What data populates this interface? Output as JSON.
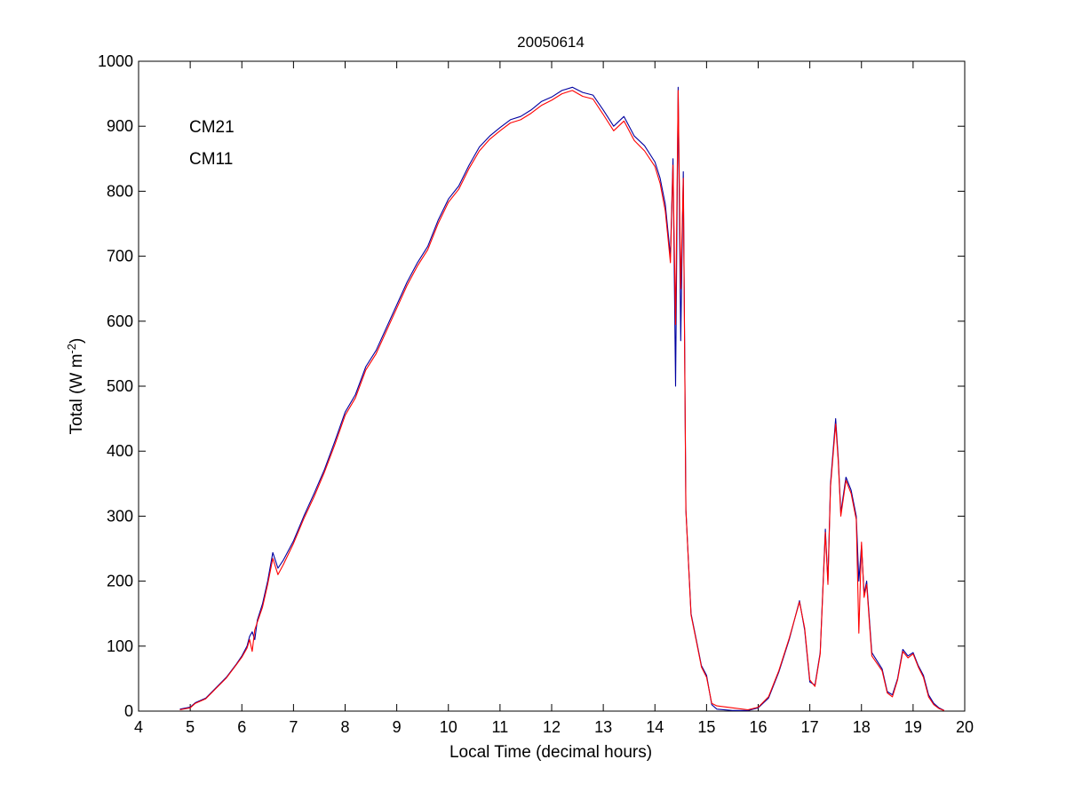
{
  "chart_data": {
    "type": "line",
    "title": "20050614",
    "xlabel": "Local Time (decimal hours)",
    "ylabel_main": "Total (W m",
    "ylabel_sup": "-2",
    "ylabel_close": ")",
    "xlim": [
      4,
      20
    ],
    "ylim": [
      0,
      1000
    ],
    "xticks": [
      4,
      5,
      6,
      7,
      8,
      9,
      10,
      11,
      12,
      13,
      14,
      15,
      16,
      17,
      18,
      19,
      20
    ],
    "yticks": [
      0,
      100,
      200,
      300,
      400,
      500,
      600,
      700,
      800,
      900,
      1000
    ],
    "grid": false,
    "legend_position": "top-left",
    "series": [
      {
        "name": "CM21",
        "color": "#0000a0",
        "points": [
          [
            4.8,
            3
          ],
          [
            5.0,
            6
          ],
          [
            5.1,
            13
          ],
          [
            5.3,
            20
          ],
          [
            5.5,
            36
          ],
          [
            5.7,
            52
          ],
          [
            5.9,
            73
          ],
          [
            6.0,
            85
          ],
          [
            6.1,
            100
          ],
          [
            6.15,
            115
          ],
          [
            6.2,
            122
          ],
          [
            6.25,
            110
          ],
          [
            6.3,
            140
          ],
          [
            6.4,
            165
          ],
          [
            6.5,
            200
          ],
          [
            6.6,
            244
          ],
          [
            6.7,
            220
          ],
          [
            6.8,
            232
          ],
          [
            7.0,
            262
          ],
          [
            7.2,
            300
          ],
          [
            7.4,
            335
          ],
          [
            7.6,
            372
          ],
          [
            7.8,
            415
          ],
          [
            8.0,
            460
          ],
          [
            8.2,
            487
          ],
          [
            8.4,
            530
          ],
          [
            8.6,
            555
          ],
          [
            8.8,
            590
          ],
          [
            9.0,
            625
          ],
          [
            9.2,
            660
          ],
          [
            9.4,
            690
          ],
          [
            9.6,
            715
          ],
          [
            9.8,
            755
          ],
          [
            10.0,
            788
          ],
          [
            10.2,
            808
          ],
          [
            10.4,
            840
          ],
          [
            10.6,
            868
          ],
          [
            10.8,
            885
          ],
          [
            11.0,
            898
          ],
          [
            11.2,
            910
          ],
          [
            11.4,
            915
          ],
          [
            11.6,
            925
          ],
          [
            11.8,
            938
          ],
          [
            12.0,
            945
          ],
          [
            12.2,
            955
          ],
          [
            12.4,
            960
          ],
          [
            12.6,
            952
          ],
          [
            12.8,
            948
          ],
          [
            13.0,
            925
          ],
          [
            13.2,
            900
          ],
          [
            13.4,
            915
          ],
          [
            13.6,
            885
          ],
          [
            13.8,
            870
          ],
          [
            14.0,
            845
          ],
          [
            14.1,
            820
          ],
          [
            14.2,
            780
          ],
          [
            14.25,
            740
          ],
          [
            14.3,
            700
          ],
          [
            14.35,
            850
          ],
          [
            14.4,
            500
          ],
          [
            14.45,
            960
          ],
          [
            14.5,
            570
          ],
          [
            14.55,
            830
          ],
          [
            14.6,
            310
          ],
          [
            14.7,
            150
          ],
          [
            14.8,
            110
          ],
          [
            14.9,
            70
          ],
          [
            15.0,
            55
          ],
          [
            15.1,
            10
          ],
          [
            15.2,
            3
          ],
          [
            15.5,
            1
          ],
          [
            15.8,
            1
          ],
          [
            16.0,
            5
          ],
          [
            16.2,
            20
          ],
          [
            16.4,
            60
          ],
          [
            16.6,
            110
          ],
          [
            16.8,
            170
          ],
          [
            16.9,
            125
          ],
          [
            17.0,
            45
          ],
          [
            17.1,
            40
          ],
          [
            17.2,
            90
          ],
          [
            17.3,
            280
          ],
          [
            17.35,
            200
          ],
          [
            17.4,
            350
          ],
          [
            17.5,
            450
          ],
          [
            17.55,
            390
          ],
          [
            17.6,
            305
          ],
          [
            17.7,
            360
          ],
          [
            17.8,
            340
          ],
          [
            17.9,
            300
          ],
          [
            17.95,
            200
          ],
          [
            18.0,
            255
          ],
          [
            18.05,
            180
          ],
          [
            18.1,
            200
          ],
          [
            18.2,
            90
          ],
          [
            18.4,
            65
          ],
          [
            18.5,
            30
          ],
          [
            18.6,
            25
          ],
          [
            18.7,
            50
          ],
          [
            18.8,
            95
          ],
          [
            18.9,
            85
          ],
          [
            19.0,
            90
          ],
          [
            19.1,
            70
          ],
          [
            19.2,
            55
          ],
          [
            19.3,
            25
          ],
          [
            19.4,
            12
          ],
          [
            19.5,
            5
          ],
          [
            19.6,
            1
          ]
        ]
      },
      {
        "name": "CM11",
        "color": "#ff0000",
        "points": [
          [
            4.8,
            2
          ],
          [
            5.0,
            5
          ],
          [
            5.1,
            12
          ],
          [
            5.3,
            19
          ],
          [
            5.5,
            35
          ],
          [
            5.7,
            51
          ],
          [
            5.9,
            72
          ],
          [
            6.0,
            83
          ],
          [
            6.1,
            97
          ],
          [
            6.15,
            110
          ],
          [
            6.2,
            92
          ],
          [
            6.25,
            125
          ],
          [
            6.3,
            137
          ],
          [
            6.4,
            160
          ],
          [
            6.5,
            195
          ],
          [
            6.6,
            235
          ],
          [
            6.7,
            210
          ],
          [
            6.8,
            225
          ],
          [
            7.0,
            258
          ],
          [
            7.2,
            296
          ],
          [
            7.4,
            330
          ],
          [
            7.6,
            368
          ],
          [
            7.8,
            410
          ],
          [
            8.0,
            455
          ],
          [
            8.2,
            482
          ],
          [
            8.4,
            525
          ],
          [
            8.6,
            550
          ],
          [
            8.8,
            585
          ],
          [
            9.0,
            620
          ],
          [
            9.2,
            655
          ],
          [
            9.4,
            685
          ],
          [
            9.6,
            710
          ],
          [
            9.8,
            750
          ],
          [
            10.0,
            783
          ],
          [
            10.2,
            803
          ],
          [
            10.4,
            835
          ],
          [
            10.6,
            862
          ],
          [
            10.8,
            880
          ],
          [
            11.0,
            893
          ],
          [
            11.2,
            905
          ],
          [
            11.4,
            910
          ],
          [
            11.6,
            920
          ],
          [
            11.8,
            932
          ],
          [
            12.0,
            940
          ],
          [
            12.2,
            950
          ],
          [
            12.4,
            955
          ],
          [
            12.6,
            946
          ],
          [
            12.8,
            942
          ],
          [
            13.0,
            918
          ],
          [
            13.2,
            893
          ],
          [
            13.4,
            908
          ],
          [
            13.6,
            878
          ],
          [
            13.8,
            862
          ],
          [
            14.0,
            838
          ],
          [
            14.1,
            812
          ],
          [
            14.2,
            770
          ],
          [
            14.25,
            730
          ],
          [
            14.3,
            690
          ],
          [
            14.35,
            840
          ],
          [
            14.4,
            595
          ],
          [
            14.45,
            955
          ],
          [
            14.5,
            650
          ],
          [
            14.55,
            820
          ],
          [
            14.6,
            310
          ],
          [
            14.7,
            148
          ],
          [
            14.8,
            108
          ],
          [
            14.9,
            68
          ],
          [
            15.0,
            52
          ],
          [
            15.1,
            12
          ],
          [
            15.2,
            8
          ],
          [
            15.5,
            5
          ],
          [
            15.8,
            2
          ],
          [
            16.0,
            6
          ],
          [
            16.2,
            22
          ],
          [
            16.4,
            62
          ],
          [
            16.6,
            112
          ],
          [
            16.8,
            168
          ],
          [
            16.9,
            128
          ],
          [
            17.0,
            48
          ],
          [
            17.1,
            38
          ],
          [
            17.2,
            88
          ],
          [
            17.3,
            275
          ],
          [
            17.35,
            195
          ],
          [
            17.4,
            345
          ],
          [
            17.5,
            442
          ],
          [
            17.55,
            385
          ],
          [
            17.6,
            300
          ],
          [
            17.7,
            355
          ],
          [
            17.8,
            335
          ],
          [
            17.9,
            295
          ],
          [
            17.95,
            120
          ],
          [
            18.0,
            260
          ],
          [
            18.05,
            175
          ],
          [
            18.1,
            195
          ],
          [
            18.2,
            85
          ],
          [
            18.4,
            62
          ],
          [
            18.5,
            28
          ],
          [
            18.6,
            22
          ],
          [
            18.7,
            48
          ],
          [
            18.8,
            92
          ],
          [
            18.9,
            82
          ],
          [
            19.0,
            88
          ],
          [
            19.1,
            68
          ],
          [
            19.2,
            52
          ],
          [
            19.3,
            22
          ],
          [
            19.4,
            10
          ],
          [
            19.5,
            4
          ],
          [
            19.6,
            1
          ]
        ]
      }
    ]
  }
}
